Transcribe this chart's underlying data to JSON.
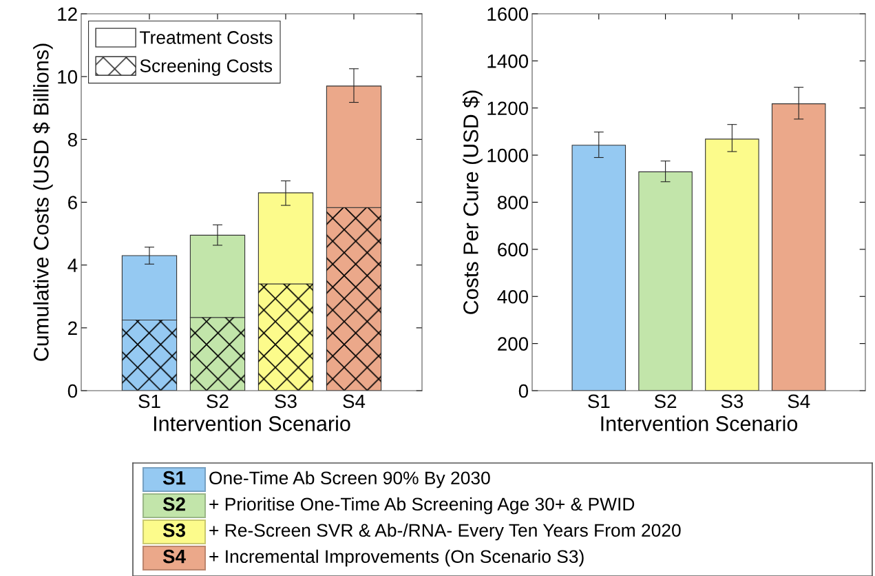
{
  "chart_data": [
    {
      "type": "bar",
      "stacked": true,
      "xlabel": "Intervention Scenario",
      "ylabel": "Cumulative Costs (USD $ Billions)",
      "categories": [
        "S1",
        "S2",
        "S3",
        "S4"
      ],
      "ylim": [
        0,
        12
      ],
      "yticks": [
        0,
        2,
        4,
        6,
        8,
        10,
        12
      ],
      "legend": "top left",
      "grid": false,
      "series": [
        {
          "name": "Screening Costs",
          "colors": [
            "#95c9f2",
            "#c2e5aa",
            "#fcfb8b",
            "#eba88a"
          ],
          "values": [
            2.25,
            2.33,
            3.4,
            5.83
          ]
        },
        {
          "name": "Treatment Costs",
          "colors": [
            "#95c9f2",
            "#c2e5aa",
            "#fcfb8b",
            "#eba88a"
          ],
          "values": [
            2.05,
            2.62,
            2.9,
            3.87
          ],
          "errors": [
            [
              4.03,
              4.57
            ],
            [
              4.63,
              5.28
            ],
            [
              5.9,
              6.68
            ],
            [
              9.18,
              10.25
            ]
          ]
        }
      ]
    },
    {
      "type": "bar",
      "xlabel": "Intervention Scenario",
      "ylabel": "Costs Per Cure (USD $)",
      "categories": [
        "S1",
        "S2",
        "S3",
        "S4"
      ],
      "ylim": [
        0,
        1600
      ],
      "yticks": [
        0,
        200,
        400,
        600,
        800,
        1000,
        1200,
        1400,
        1600
      ],
      "grid": false,
      "colors": [
        "#95c9f2",
        "#c2e5aa",
        "#fcfb8b",
        "#eba88a"
      ],
      "values": [
        1042,
        929,
        1068,
        1218
      ],
      "errors": [
        [
          990,
          1098
        ],
        [
          887,
          975
        ],
        [
          1015,
          1130
        ],
        [
          1153,
          1288
        ]
      ]
    },
    {
      "type": "other",
      "categories": [
        "S1",
        "S2",
        "S3",
        "S4"
      ],
      "colors": [
        "#95c9f2",
        "#c2e5aa",
        "#fcfb8b",
        "#eba88a"
      ],
      "annotations": [
        "One-Time Ab Screen 90% By 2030",
        "+ Prioritise One-Time Ab Screening Age 30+ & PWID",
        "+ Re-Screen SVR & Ab-/RNA- Every Ten Years From 2020",
        "+ Incremental Improvements (On Scenario S3)"
      ]
    }
  ]
}
